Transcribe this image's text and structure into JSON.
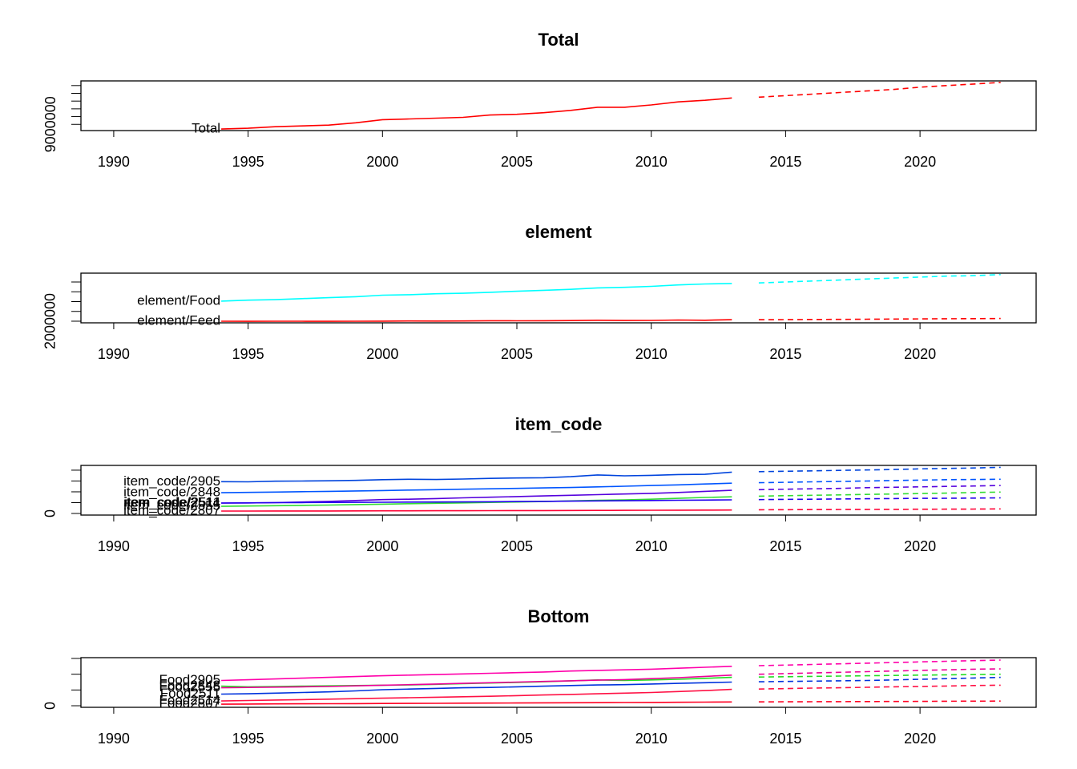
{
  "chart_data": [
    {
      "type": "line",
      "title": "Total",
      "x": [
        1994,
        1995,
        1996,
        1997,
        1998,
        1999,
        2000,
        2001,
        2002,
        2003,
        2004,
        2005,
        2006,
        2007,
        2008,
        2009,
        2010,
        2011,
        2012,
        2013
      ],
      "forecast_x": [
        2014,
        2015,
        2016,
        2017,
        2018,
        2019,
        2020,
        2021,
        2022,
        2023
      ],
      "xlim": [
        1988.78,
        2024.32
      ],
      "xticks": [
        1990,
        1995,
        2000,
        2005,
        2010,
        2015,
        2020
      ],
      "ylim": [
        8200000,
        14600000
      ],
      "yticks": [
        9000000
      ],
      "yminorticks": [
        10000000,
        11000000,
        12000000,
        13000000,
        14000000
      ],
      "series": [
        {
          "name": "Total",
          "color": "#ff0000",
          "values": [
            8400000,
            8500000,
            8700000,
            8800000,
            8900000,
            9200000,
            9600000,
            9700000,
            9800000,
            9900000,
            10200000,
            10300000,
            10500000,
            10800000,
            11200000,
            11200000,
            11500000,
            11900000,
            12100000,
            12400000
          ],
          "forecast": [
            12500000,
            12700000,
            12900000,
            13100000,
            13300000,
            13500000,
            13800000,
            14000000,
            14200000,
            14400000
          ]
        }
      ]
    },
    {
      "type": "line",
      "title": "element",
      "x": [
        1994,
        1995,
        1996,
        1997,
        1998,
        1999,
        2000,
        2001,
        2002,
        2003,
        2004,
        2005,
        2006,
        2007,
        2008,
        2009,
        2010,
        2011,
        2012,
        2013
      ],
      "forecast_x": [
        2014,
        2015,
        2016,
        2017,
        2018,
        2019,
        2020,
        2021,
        2022,
        2023
      ],
      "xlim": [
        1988.78,
        2024.32
      ],
      "xticks": [
        1990,
        1995,
        2000,
        2005,
        2010,
        2015,
        2020
      ],
      "ylim": [
        1670000,
        11800000
      ],
      "yticks": [
        2000000
      ],
      "yminorticks": [
        4000000,
        6000000,
        8000000,
        10000000
      ],
      "series": [
        {
          "name": "element/Food",
          "color": "#00ffff",
          "values": [
            6100000,
            6300000,
            6400000,
            6600000,
            6800000,
            7000000,
            7300000,
            7400000,
            7600000,
            7700000,
            7900000,
            8100000,
            8300000,
            8500000,
            8800000,
            8900000,
            9100000,
            9400000,
            9600000,
            9700000
          ],
          "forecast": [
            9800000,
            10000000,
            10200000,
            10400000,
            10600000,
            10800000,
            11000000,
            11200000,
            11300000,
            11500000
          ]
        },
        {
          "name": "element/Feed",
          "color": "#ff0000",
          "values": [
            2000000,
            1980000,
            2000000,
            2000000,
            1980000,
            1990000,
            2020000,
            2040000,
            2030000,
            2040000,
            2100000,
            2080000,
            2090000,
            2120000,
            2200000,
            2150000,
            2160000,
            2250000,
            2200000,
            2300000
          ],
          "forecast": [
            2300000,
            2330000,
            2360000,
            2380000,
            2410000,
            2440000,
            2470000,
            2500000,
            2520000,
            2550000
          ]
        }
      ]
    },
    {
      "type": "line",
      "title": "item_code",
      "x": [
        1994,
        1995,
        1996,
        1997,
        1998,
        1999,
        2000,
        2001,
        2002,
        2003,
        2004,
        2005,
        2006,
        2007,
        2008,
        2009,
        2010,
        2011,
        2012,
        2013
      ],
      "forecast_x": [
        2014,
        2015,
        2016,
        2017,
        2018,
        2019,
        2020,
        2021,
        2022,
        2023
      ],
      "xlim": [
        1988.78,
        2024.32
      ],
      "xticks": [
        1990,
        1995,
        2000,
        2005,
        2010,
        2015,
        2020
      ],
      "ylim": [
        -73500,
        2220000
      ],
      "yticks": [
        0
      ],
      "yminorticks": [
        500000,
        1000000,
        1500000,
        2000000
      ],
      "series": [
        {
          "name": "item_code/2905",
          "color": "#0044dd",
          "values": [
            1470000,
            1460000,
            1490000,
            1500000,
            1510000,
            1530000,
            1560000,
            1580000,
            1570000,
            1590000,
            1620000,
            1640000,
            1650000,
            1700000,
            1780000,
            1740000,
            1760000,
            1800000,
            1810000,
            1910000
          ],
          "forecast": [
            1930000,
            1950000,
            1970000,
            1990000,
            2010000,
            2030000,
            2060000,
            2080000,
            2100000,
            2130000
          ]
        },
        {
          "name": "item_code/2848",
          "color": "#0055ff",
          "values": [
            960000,
            975000,
            990000,
            1005000,
            1020000,
            1040000,
            1060000,
            1080000,
            1100000,
            1120000,
            1140000,
            1160000,
            1180000,
            1200000,
            1230000,
            1260000,
            1290000,
            1320000,
            1360000,
            1400000
          ],
          "forecast": [
            1420000,
            1440000,
            1460000,
            1480000,
            1500000,
            1520000,
            1540000,
            1560000,
            1570000,
            1580000
          ]
        },
        {
          "name": "item_code/2511",
          "color": "#5500dd",
          "values": [
            480000,
            490000,
            500000,
            530000,
            560000,
            600000,
            640000,
            660000,
            690000,
            720000,
            750000,
            780000,
            810000,
            840000,
            870000,
            900000,
            930000,
            970000,
            1020000,
            1070000
          ],
          "forecast": [
            1100000,
            1120000,
            1140000,
            1160000,
            1190000,
            1210000,
            1230000,
            1250000,
            1270000,
            1290000
          ]
        },
        {
          "name": "item_code/2555",
          "color": "#33dd33",
          "values": [
            330000,
            345000,
            360000,
            375000,
            390000,
            410000,
            430000,
            450000,
            470000,
            490000,
            510000,
            530000,
            550000,
            580000,
            610000,
            630000,
            660000,
            700000,
            740000,
            770000
          ],
          "forecast": [
            800000,
            820000,
            840000,
            860000,
            880000,
            900000,
            920000,
            940000,
            970000,
            990000
          ]
        },
        {
          "name": "item_code/2514",
          "color": "#2200ee",
          "values": [
            480000,
            490000,
            500000,
            505000,
            510000,
            515000,
            520000,
            525000,
            530000,
            535000,
            540000,
            550000,
            560000,
            570000,
            580000,
            590000,
            600000,
            610000,
            620000,
            630000
          ],
          "forecast": [
            640000,
            650000,
            660000,
            670000,
            680000,
            690000,
            700000,
            705000,
            710000,
            720000
          ]
        },
        {
          "name": "item_code/2807",
          "color": "#ff0033",
          "values": [
            110000,
            112000,
            114000,
            115000,
            117000,
            119000,
            121000,
            123000,
            125000,
            127000,
            130000,
            132000,
            135000,
            138000,
            141000,
            144000,
            148000,
            152000,
            156000,
            160000
          ],
          "forecast": [
            170000,
            175000,
            180000,
            184000,
            188000,
            192000,
            196000,
            200000,
            205000,
            210000
          ]
        }
      ]
    },
    {
      "type": "line",
      "title": "Bottom",
      "x": [
        1994,
        1995,
        1996,
        1997,
        1998,
        1999,
        2000,
        2001,
        2002,
        2003,
        2004,
        2005,
        2006,
        2007,
        2008,
        2009,
        2010,
        2011,
        2012,
        2013
      ],
      "forecast_x": [
        2014,
        2015,
        2016,
        2017,
        2018,
        2019,
        2020,
        2021,
        2022,
        2023
      ],
      "xlim": [
        1988.78,
        2024.32
      ],
      "xticks": [
        1990,
        1995,
        2000,
        2005,
        2010,
        2015,
        2020
      ],
      "ylim": [
        -50000,
        1525000
      ],
      "yticks": [
        0
      ],
      "yminorticks": [
        500000,
        1000000,
        1500000
      ],
      "series": [
        {
          "name": "Food2905",
          "color": "#ff00aa",
          "values": [
            800000,
            825000,
            850000,
            875000,
            900000,
            925000,
            950000,
            970000,
            990000,
            1010000,
            1030000,
            1050000,
            1070000,
            1100000,
            1120000,
            1140000,
            1160000,
            1190000,
            1220000,
            1250000
          ],
          "forecast": [
            1270000,
            1290000,
            1310000,
            1330000,
            1350000,
            1370000,
            1390000,
            1410000,
            1430000,
            1450000
          ]
        },
        {
          "name": "Food2848",
          "color": "#22dd22",
          "values": [
            620000,
            600000,
            610000,
            620000,
            630000,
            640000,
            650000,
            660000,
            680000,
            700000,
            720000,
            740000,
            760000,
            790000,
            820000,
            800000,
            820000,
            840000,
            870000,
            900000
          ],
          "forecast": [
            910000,
            920000,
            930000,
            940000,
            950000,
            960000,
            970000,
            980000,
            990000,
            1000000
          ]
        },
        {
          "name": "Food2511",
          "color": "#0033dd",
          "values": [
            370000,
            380000,
            400000,
            420000,
            440000,
            470000,
            510000,
            530000,
            550000,
            570000,
            580000,
            600000,
            620000,
            640000,
            660000,
            670000,
            690000,
            710000,
            730000,
            750000
          ],
          "forecast": [
            760000,
            770000,
            780000,
            790000,
            800000,
            820000,
            840000,
            860000,
            880000,
            900000
          ]
        },
        {
          "name": "Food2555",
          "color": "#ee0099",
          "values": [
            570000,
            580000,
            590000,
            600000,
            610000,
            630000,
            650000,
            670000,
            690000,
            710000,
            730000,
            750000,
            770000,
            790000,
            810000,
            830000,
            860000,
            890000,
            930000,
            970000
          ],
          "forecast": [
            1000000,
            1020000,
            1040000,
            1060000,
            1080000,
            1100000,
            1120000,
            1140000,
            1160000,
            1170000
          ]
        },
        {
          "name": "Food2514",
          "color": "#ff1144",
          "values": [
            150000,
            165000,
            180000,
            195000,
            210000,
            225000,
            240000,
            255000,
            270000,
            285000,
            300000,
            320000,
            340000,
            360000,
            380000,
            400000,
            420000,
            450000,
            480000,
            520000
          ],
          "forecast": [
            530000,
            545000,
            560000,
            570000,
            585000,
            600000,
            610000,
            625000,
            640000,
            650000
          ]
        },
        {
          "name": "Food2807",
          "color": "#ff0022",
          "values": [
            50000,
            55000,
            58000,
            62000,
            65000,
            68000,
            72000,
            75000,
            78000,
            82000,
            85000,
            88000,
            92000,
            95000,
            98000,
            102000,
            105000,
            110000,
            115000,
            120000
          ],
          "forecast": [
            122000,
            125000,
            128000,
            130000,
            133000,
            136000,
            139000,
            142000,
            145000,
            148000
          ]
        }
      ]
    }
  ]
}
